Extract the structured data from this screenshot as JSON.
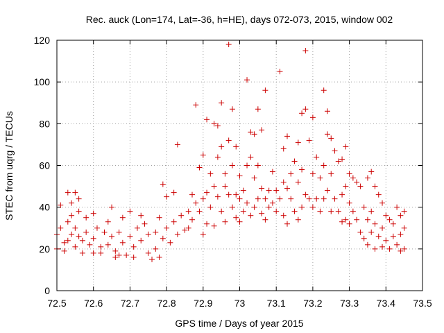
{
  "chart_data": {
    "type": "scatter",
    "title": "Rec. auck (Lon=174, Lat=-36, h=HE), days 072-073, 2015, window 002",
    "xlabel": "GPS time / Days of year 2015",
    "ylabel": "STEC from uqrg / TECUs",
    "xlim": [
      72.5,
      73.5
    ],
    "ylim": [
      0,
      120
    ],
    "xticks": [
      72.5,
      72.6,
      72.7,
      72.8,
      72.9,
      73,
      73.1,
      73.2,
      73.3,
      73.4,
      73.5
    ],
    "xtick_labels": [
      "72.5",
      "72.6",
      "72.7",
      "72.8",
      "72.9",
      "73",
      "73.1",
      "73.2",
      "73.3",
      "73.4",
      "73.5"
    ],
    "yticks": [
      0,
      20,
      40,
      60,
      80,
      100,
      120
    ],
    "ytick_labels": [
      "0",
      "20",
      "40",
      "60",
      "80",
      "100",
      "120"
    ],
    "grid": true,
    "marker": "+",
    "color": "#cc0000",
    "series": [
      {
        "name": "STEC",
        "points": [
          [
            72.5,
            27
          ],
          [
            72.5,
            20
          ],
          [
            72.51,
            41
          ],
          [
            72.51,
            30
          ],
          [
            72.52,
            23
          ],
          [
            72.52,
            19
          ],
          [
            72.53,
            47
          ],
          [
            72.53,
            33
          ],
          [
            72.53,
            24
          ],
          [
            72.54,
            42
          ],
          [
            72.54,
            36
          ],
          [
            72.54,
            27
          ],
          [
            72.55,
            47
          ],
          [
            72.55,
            30
          ],
          [
            72.55,
            21
          ],
          [
            72.56,
            44
          ],
          [
            72.56,
            38
          ],
          [
            72.56,
            26
          ],
          [
            72.57,
            24
          ],
          [
            72.57,
            18
          ],
          [
            72.58,
            35
          ],
          [
            72.58,
            28
          ],
          [
            72.59,
            22
          ],
          [
            72.6,
            37
          ],
          [
            72.6,
            25
          ],
          [
            72.6,
            18
          ],
          [
            72.61,
            30
          ],
          [
            72.62,
            21
          ],
          [
            72.62,
            18
          ],
          [
            72.63,
            28
          ],
          [
            72.64,
            33
          ],
          [
            72.64,
            22
          ],
          [
            72.65,
            40
          ],
          [
            72.65,
            26
          ],
          [
            72.66,
            19
          ],
          [
            72.66,
            16
          ],
          [
            72.67,
            28
          ],
          [
            72.67,
            17
          ],
          [
            72.68,
            35
          ],
          [
            72.68,
            23
          ],
          [
            72.69,
            17
          ],
          [
            72.7,
            38
          ],
          [
            72.7,
            26
          ],
          [
            72.71,
            21
          ],
          [
            72.71,
            16
          ],
          [
            72.72,
            30
          ],
          [
            72.73,
            36
          ],
          [
            72.73,
            24
          ],
          [
            72.74,
            32
          ],
          [
            72.75,
            27
          ],
          [
            72.75,
            18
          ],
          [
            72.76,
            15
          ],
          [
            72.77,
            28
          ],
          [
            72.77,
            20
          ],
          [
            72.78,
            35
          ],
          [
            72.78,
            16
          ],
          [
            72.79,
            51
          ],
          [
            72.79,
            25
          ],
          [
            72.8,
            45
          ],
          [
            72.8,
            30
          ],
          [
            72.81,
            23
          ],
          [
            72.82,
            47
          ],
          [
            72.82,
            33
          ],
          [
            72.83,
            70
          ],
          [
            72.83,
            27
          ],
          [
            72.84,
            36
          ],
          [
            72.85,
            29
          ],
          [
            72.86,
            38
          ],
          [
            72.86,
            30
          ],
          [
            72.87,
            46
          ],
          [
            72.87,
            34
          ],
          [
            72.88,
            89
          ],
          [
            72.88,
            42
          ],
          [
            72.89,
            59
          ],
          [
            72.89,
            38
          ],
          [
            72.9,
            65
          ],
          [
            72.9,
            44
          ],
          [
            72.9,
            27
          ],
          [
            72.91,
            82
          ],
          [
            72.91,
            47
          ],
          [
            72.91,
            32
          ],
          [
            72.92,
            56
          ],
          [
            72.92,
            40
          ],
          [
            72.93,
            80
          ],
          [
            72.93,
            50
          ],
          [
            72.93,
            31
          ],
          [
            72.94,
            79
          ],
          [
            72.94,
            64
          ],
          [
            72.94,
            45
          ],
          [
            72.95,
            90
          ],
          [
            72.95,
            69
          ],
          [
            72.95,
            38
          ],
          [
            72.96,
            56
          ],
          [
            72.96,
            50
          ],
          [
            72.96,
            33
          ],
          [
            72.97,
            118
          ],
          [
            72.97,
            72
          ],
          [
            72.97,
            46
          ],
          [
            72.98,
            87
          ],
          [
            72.98,
            60
          ],
          [
            72.98,
            40
          ],
          [
            72.99,
            69
          ],
          [
            72.99,
            46
          ],
          [
            72.99,
            35
          ],
          [
            73.0,
            55
          ],
          [
            73.0,
            44
          ],
          [
            73.0,
            33
          ],
          [
            73.01,
            48
          ],
          [
            73.01,
            38
          ],
          [
            73.02,
            101
          ],
          [
            73.02,
            60
          ],
          [
            73.02,
            42
          ],
          [
            73.03,
            76
          ],
          [
            73.03,
            64
          ],
          [
            73.03,
            36
          ],
          [
            73.04,
            75
          ],
          [
            73.04,
            54
          ],
          [
            73.04,
            40
          ],
          [
            73.05,
            87
          ],
          [
            73.05,
            60
          ],
          [
            73.05,
            44
          ],
          [
            73.06,
            77
          ],
          [
            73.06,
            49
          ],
          [
            73.06,
            37
          ],
          [
            73.07,
            96
          ],
          [
            73.07,
            44
          ],
          [
            73.07,
            34
          ],
          [
            73.08,
            48
          ],
          [
            73.08,
            40
          ],
          [
            73.09,
            57
          ],
          [
            73.09,
            42
          ],
          [
            73.1,
            48
          ],
          [
            73.1,
            38
          ],
          [
            73.11,
            105
          ],
          [
            73.11,
            44
          ],
          [
            73.12,
            68
          ],
          [
            73.12,
            52
          ],
          [
            73.12,
            36
          ],
          [
            73.13,
            74
          ],
          [
            73.13,
            49
          ],
          [
            73.13,
            32
          ],
          [
            73.14,
            56
          ],
          [
            73.14,
            44
          ],
          [
            73.15,
            62
          ],
          [
            73.15,
            38
          ],
          [
            73.16,
            71
          ],
          [
            73.16,
            52
          ],
          [
            73.16,
            34
          ],
          [
            73.17,
            85
          ],
          [
            73.17,
            58
          ],
          [
            73.17,
            40
          ],
          [
            73.18,
            115
          ],
          [
            73.18,
            87
          ],
          [
            73.18,
            46
          ],
          [
            73.19,
            72
          ],
          [
            73.19,
            44
          ],
          [
            73.2,
            83
          ],
          [
            73.2,
            56
          ],
          [
            73.2,
            40
          ],
          [
            73.21,
            64
          ],
          [
            73.21,
            44
          ],
          [
            73.22,
            54
          ],
          [
            73.22,
            38
          ],
          [
            73.23,
            96
          ],
          [
            73.23,
            60
          ],
          [
            73.23,
            44
          ],
          [
            73.24,
            86
          ],
          [
            73.24,
            75
          ],
          [
            73.24,
            48
          ],
          [
            73.25,
            73
          ],
          [
            73.25,
            56
          ],
          [
            73.25,
            38
          ],
          [
            73.26,
            67
          ],
          [
            73.26,
            44
          ],
          [
            73.27,
            62
          ],
          [
            73.27,
            38
          ],
          [
            73.28,
            63
          ],
          [
            73.28,
            46
          ],
          [
            73.28,
            33
          ],
          [
            73.29,
            69
          ],
          [
            73.29,
            50
          ],
          [
            73.29,
            34
          ],
          [
            73.3,
            56
          ],
          [
            73.3,
            42
          ],
          [
            73.3,
            32
          ],
          [
            73.31,
            54
          ],
          [
            73.31,
            38
          ],
          [
            73.32,
            52
          ],
          [
            73.32,
            34
          ],
          [
            73.33,
            50
          ],
          [
            73.33,
            28
          ],
          [
            73.34,
            40
          ],
          [
            73.34,
            25
          ],
          [
            73.35,
            54
          ],
          [
            73.35,
            34
          ],
          [
            73.35,
            22
          ],
          [
            73.36,
            57
          ],
          [
            73.36,
            38
          ],
          [
            73.36,
            28
          ],
          [
            73.37,
            50
          ],
          [
            73.37,
            32
          ],
          [
            73.37,
            20
          ],
          [
            73.38,
            46
          ],
          [
            73.38,
            26
          ],
          [
            73.39,
            42
          ],
          [
            73.39,
            30
          ],
          [
            73.39,
            21
          ],
          [
            73.4,
            36
          ],
          [
            73.4,
            24
          ],
          [
            73.41,
            34
          ],
          [
            73.41,
            20
          ],
          [
            73.42,
            32
          ],
          [
            73.42,
            26
          ],
          [
            73.43,
            40
          ],
          [
            73.43,
            22
          ],
          [
            73.44,
            36
          ],
          [
            73.44,
            27
          ],
          [
            73.44,
            19
          ],
          [
            73.45,
            38
          ],
          [
            73.45,
            30
          ],
          [
            73.45,
            20
          ]
        ]
      }
    ]
  }
}
